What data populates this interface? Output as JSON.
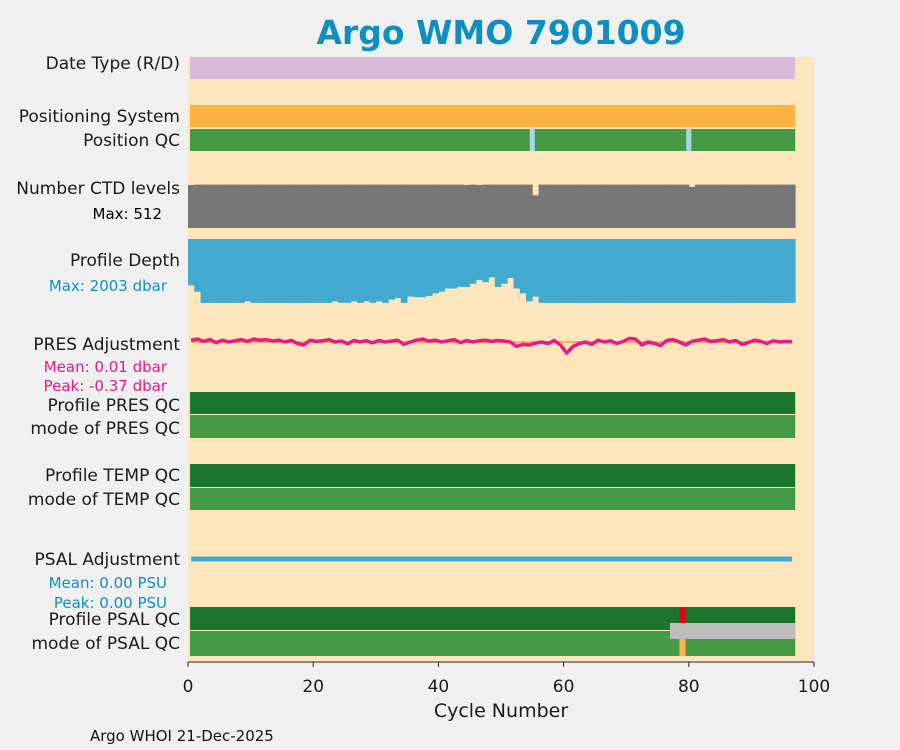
{
  "chart_data": {
    "type": "qc-summary",
    "title": "Argo WMO 7901009",
    "xlabel": "Cycle Number",
    "xlim": [
      0,
      100
    ],
    "xticks": [
      0,
      20,
      40,
      60,
      80,
      100
    ],
    "last_cycle": 97,
    "footer": "Argo WHOI 21-Dec-2025",
    "colors": {
      "background": "#fde6bb",
      "title": "#0f8fbf",
      "date_type": "#d8b9dc",
      "positioning": "#fbb43f",
      "qc_good": "#459b45",
      "qc_good_dark": "#19762c",
      "qc_light_blue": "#a8d8e8",
      "ctd": "#777777",
      "profile_depth": "#42aad0",
      "pres_adj": "#e8198a",
      "psal_adj": "#42aad0",
      "qc_bad": "#e3001b",
      "gray_bar": "#bdbdbd"
    },
    "rows": {
      "date_type": {
        "label": "Date Type (R/D)"
      },
      "positioning": {
        "label": "Positioning System"
      },
      "position_qc": {
        "label": "Position QC",
        "flagged_cycles": [
          55,
          80
        ]
      },
      "ctd_levels": {
        "label": "Number CTD levels",
        "max_label": "Max: 512",
        "max": 512,
        "values": [
          500,
          505,
          505,
          505,
          505,
          505,
          505,
          505,
          505,
          505,
          505,
          505,
          505,
          505,
          505,
          505,
          505,
          505,
          505,
          505,
          505,
          505,
          505,
          505,
          505,
          505,
          505,
          505,
          505,
          505,
          505,
          505,
          505,
          505,
          505,
          505,
          505,
          505,
          505,
          505,
          505,
          505,
          505,
          505,
          500,
          505,
          500,
          505,
          505,
          505,
          505,
          505,
          505,
          505,
          505,
          380,
          505,
          505,
          505,
          505,
          505,
          505,
          505,
          505,
          505,
          505,
          505,
          505,
          505,
          505,
          505,
          505,
          505,
          505,
          505,
          505,
          505,
          505,
          505,
          505,
          480,
          505,
          505,
          505,
          505,
          505,
          505,
          505,
          505,
          505,
          505,
          505,
          505,
          505,
          505,
          505,
          505
        ]
      },
      "profile_depth": {
        "label": "Profile Depth",
        "max_label": "Max: 2003 dbar",
        "max": 2003,
        "values": [
          1450,
          1650,
          2000,
          2000,
          2000,
          2000,
          2000,
          2000,
          2000,
          1950,
          2000,
          2000,
          2000,
          2000,
          2000,
          2000,
          2000,
          2000,
          2000,
          2000,
          2000,
          2000,
          2000,
          1950,
          2000,
          2000,
          1950,
          2000,
          1950,
          2000,
          1950,
          2000,
          1900,
          1850,
          2000,
          1800,
          1820,
          1820,
          1780,
          1700,
          1650,
          1550,
          1550,
          1500,
          1500,
          1400,
          1280,
          1350,
          1200,
          1500,
          1400,
          1220,
          1550,
          1700,
          1950,
          1800,
          2000,
          2000,
          2000,
          2000,
          2000,
          2000,
          2000,
          2000,
          2000,
          2000,
          2000,
          2000,
          2000,
          2000,
          2000,
          2000,
          2000,
          2000,
          2000,
          2000,
          2000,
          2000,
          2000,
          2000,
          2000,
          2000,
          2000,
          2000,
          2000,
          2000,
          2000,
          2000,
          2000,
          2000,
          2000,
          2000,
          2000,
          2000,
          2000,
          2000,
          2000
        ]
      },
      "pres_adjustment": {
        "label": "PRES Adjustment",
        "mean_label": "Mean: 0.01 dbar",
        "peak_label": "Peak: -0.37 dbar",
        "ylim": [
          -0.6,
          0.6
        ],
        "values": [
          0.05,
          0.1,
          0.02,
          0.08,
          -0.02,
          0.06,
          0.0,
          0.04,
          0.08,
          0.02,
          0.1,
          0.06,
          0.08,
          0.03,
          0.06,
          0.0,
          0.05,
          -0.05,
          -0.1,
          0.06,
          0.02,
          0.04,
          0.08,
          0.0,
          0.03,
          -0.06,
          0.05,
          0.0,
          0.04,
          -0.03,
          0.05,
          0.0,
          0.03,
          0.06,
          -0.08,
          0.0,
          0.06,
          0.1,
          0.03,
          0.06,
          0.0,
          0.04,
          0.08,
          -0.02,
          0.05,
          0.0,
          0.04,
          0.06,
          0.02,
          0.05,
          0.03,
          0.0,
          -0.15,
          -0.08,
          -0.1,
          -0.04,
          0.0,
          -0.05,
          0.05,
          -0.1,
          -0.37,
          -0.15,
          -0.05,
          0.0,
          -0.08,
          0.06,
          0.0,
          0.04,
          -0.05,
          0.02,
          0.12,
          0.1,
          -0.1,
          0.0,
          -0.05,
          -0.12,
          0.05,
          0.08,
          0.0,
          -0.1,
          0.02,
          0.06,
          0.1,
          0.02,
          0.04,
          0.08,
          0.0,
          0.05,
          -0.08,
          -0.02,
          0.06,
          0.02,
          -0.05,
          0.04,
          0.0,
          0.02,
          0.01
        ]
      },
      "profile_pres_qc": {
        "label": "Profile PRES QC"
      },
      "mode_pres_qc": {
        "label": "mode of PRES QC"
      },
      "profile_temp_qc": {
        "label": "Profile TEMP QC"
      },
      "mode_temp_qc": {
        "label": "mode of TEMP QC"
      },
      "psal_adjustment": {
        "label": "PSAL Adjustment",
        "mean_label": "Mean: 0.00 PSU",
        "peak_label": "Peak: 0.00 PSU"
      },
      "profile_psal_qc": {
        "label": "Profile PSAL QC",
        "bad_cycle": 79
      },
      "mode_psal_qc": {
        "label": "mode of PSAL QC",
        "gray_range": [
          77,
          97
        ],
        "flag_cycle": 79
      }
    }
  }
}
